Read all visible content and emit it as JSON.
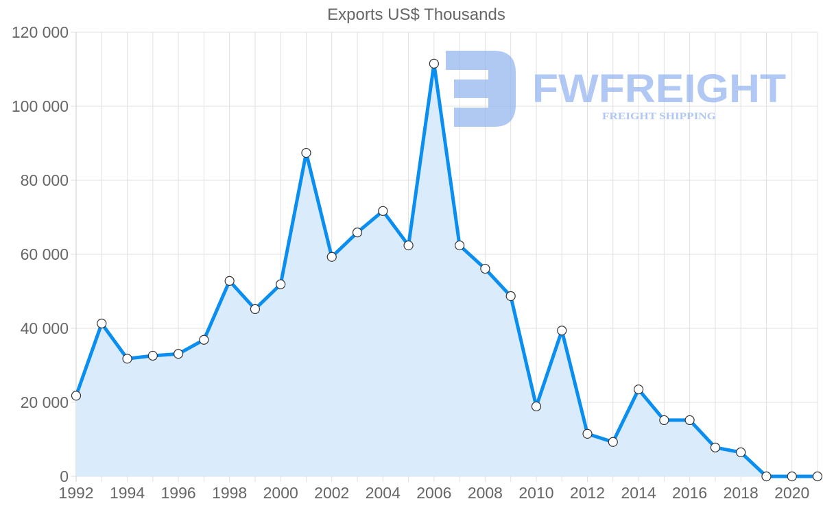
{
  "chart_data": {
    "type": "area",
    "title": "Exports US$ Thousands",
    "xlabel": "",
    "ylabel": "",
    "x": [
      1992,
      1993,
      1994,
      1995,
      1996,
      1997,
      1998,
      1999,
      2000,
      2001,
      2002,
      2003,
      2004,
      2005,
      2006,
      2007,
      2008,
      2009,
      2010,
      2011,
      2012,
      2013,
      2014,
      2015,
      2016,
      2017,
      2018,
      2019,
      2020,
      2021
    ],
    "series": [
      {
        "name": "Exports US$ Thousands",
        "values": [
          21800,
          41300,
          31800,
          32600,
          33100,
          36900,
          52800,
          45200,
          51900,
          87400,
          59300,
          65900,
          71700,
          62400,
          111500,
          62400,
          56100,
          48700,
          18900,
          39400,
          11500,
          9300,
          23500,
          15200,
          15200,
          7800,
          6500,
          0,
          0,
          0
        ]
      }
    ],
    "x_tick_labels": [
      "1992",
      "1994",
      "1996",
      "1998",
      "2000",
      "2002",
      "2004",
      "2006",
      "2008",
      "2010",
      "2012",
      "2014",
      "2016",
      "2018",
      "2020"
    ],
    "y_tick_labels": [
      "0",
      "20 000",
      "40 000",
      "60 000",
      "80 000",
      "100 000",
      "120 000"
    ],
    "ylim": [
      0,
      120000
    ],
    "xlim": [
      1992,
      2021
    ],
    "grid": true,
    "legend": "none",
    "colors": {
      "line": "#0a8ff0",
      "fill": "#d8ebfc",
      "point_fill": "#ffffff",
      "point_stroke": "#333333",
      "grid": "#e0e0e0",
      "text": "#666666"
    }
  },
  "watermark": {
    "brand": "FWFREIGHT",
    "tagline": "FREIGHT SHIPPING",
    "color": "#8fb2ee"
  }
}
